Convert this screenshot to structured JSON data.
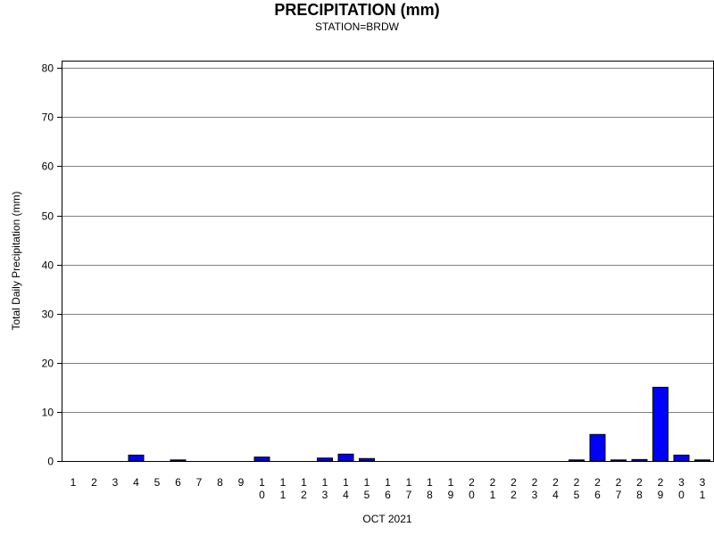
{
  "chart_data": {
    "type": "bar",
    "title": "PRECIPITATION (mm)",
    "subtitle": "STATION=BRDW",
    "xlabel": "OCT 2021",
    "ylabel": "Total Daily Precipitation (mm)",
    "ylim": [
      0,
      80
    ],
    "yticks": [
      0,
      10,
      20,
      30,
      40,
      50,
      60,
      70,
      80
    ],
    "grid": true,
    "bar_color": "#0000ff",
    "categories": [
      "1",
      "2",
      "3",
      "4",
      "5",
      "6",
      "7",
      "8",
      "9",
      "10",
      "11",
      "12",
      "13",
      "14",
      "15",
      "16",
      "17",
      "18",
      "19",
      "20",
      "21",
      "22",
      "23",
      "24",
      "25",
      "26",
      "27",
      "28",
      "29",
      "30",
      "31"
    ],
    "values": [
      0,
      0,
      0,
      1.2,
      0,
      0.1,
      0,
      0,
      0,
      0.8,
      0,
      0,
      0.6,
      1.4,
      0.5,
      0,
      0,
      0,
      0,
      0,
      0,
      0,
      0,
      0,
      0.1,
      5.4,
      0.1,
      0.3,
      15.0,
      1.2,
      0.1
    ]
  }
}
